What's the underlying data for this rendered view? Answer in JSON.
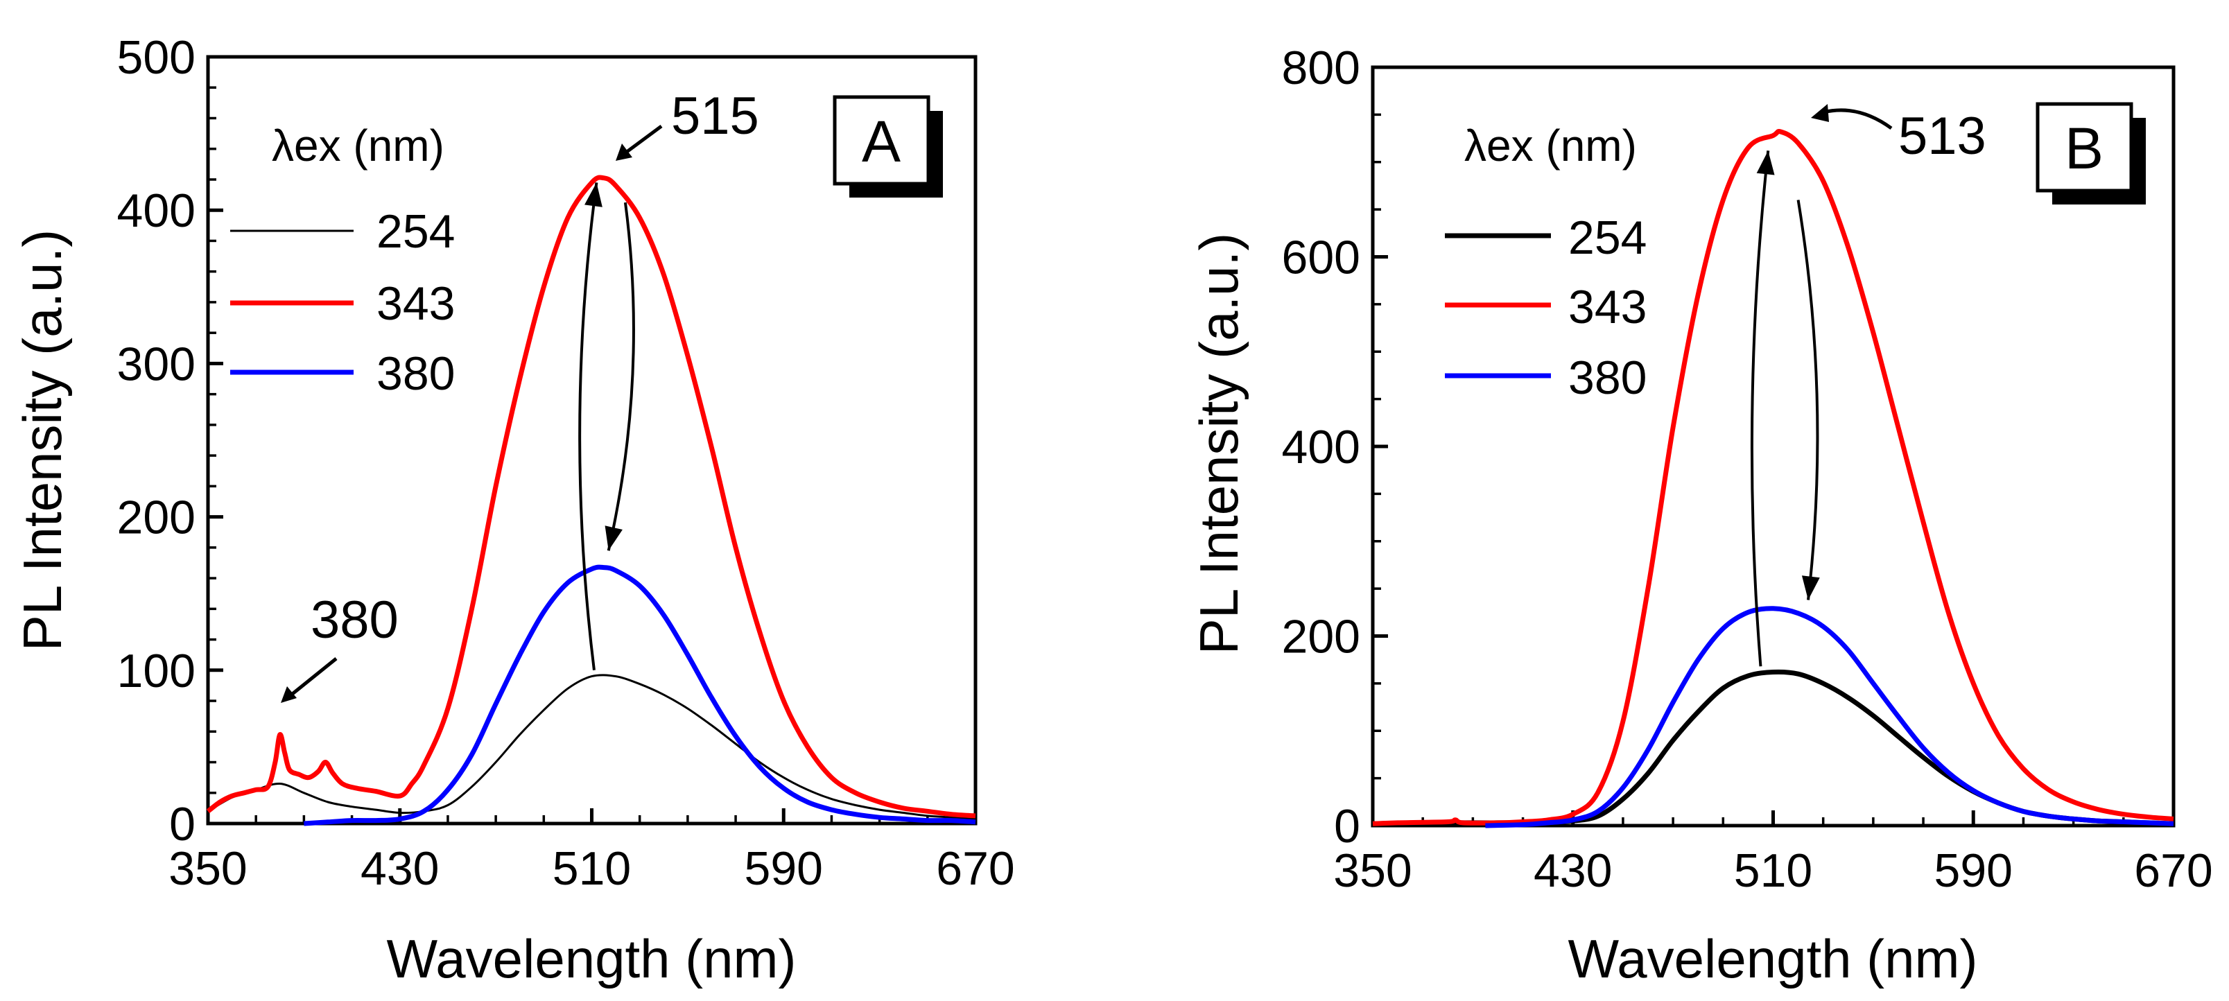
{
  "chart_data": [
    {
      "panel": "A",
      "type": "line",
      "xlabel": "Wavelength (nm)",
      "ylabel": "PL Intensity (a.u.)",
      "xlim": [
        350,
        670
      ],
      "ylim": [
        0,
        500
      ],
      "xticks": [
        "350",
        "430",
        "510",
        "590",
        "670"
      ],
      "yticks": [
        "0",
        "100",
        "200",
        "300",
        "400",
        "500"
      ],
      "legend_title": "λex (nm)",
      "legend_placement": "top-left",
      "series": [
        {
          "name": "254",
          "color": "#000000",
          "thin": true,
          "points": [
            [
              350,
              8
            ],
            [
              360,
              17
            ],
            [
              370,
              22
            ],
            [
              380,
              26
            ],
            [
              390,
              20
            ],
            [
              400,
              14
            ],
            [
              410,
              11
            ],
            [
              420,
              9
            ],
            [
              430,
              7
            ],
            [
              440,
              8
            ],
            [
              450,
              12
            ],
            [
              460,
              24
            ],
            [
              470,
              40
            ],
            [
              480,
              58
            ],
            [
              490,
              74
            ],
            [
              500,
              88
            ],
            [
              510,
              96
            ],
            [
              520,
              96
            ],
            [
              530,
              91
            ],
            [
              540,
              84
            ],
            [
              550,
              75
            ],
            [
              560,
              64
            ],
            [
              570,
              52
            ],
            [
              580,
              40
            ],
            [
              590,
              30
            ],
            [
              600,
              22
            ],
            [
              610,
              16
            ],
            [
              620,
              12
            ],
            [
              630,
              9
            ],
            [
              640,
              7
            ],
            [
              650,
              5
            ],
            [
              660,
              4
            ],
            [
              670,
              3
            ]
          ]
        },
        {
          "name": "343",
          "color": "#ff0000",
          "thin": false,
          "points": [
            [
              350,
              8
            ],
            [
              355,
              14
            ],
            [
              360,
              18
            ],
            [
              365,
              20
            ],
            [
              370,
              22
            ],
            [
              375,
              24
            ],
            [
              378,
              40
            ],
            [
              380,
              58
            ],
            [
              382,
              46
            ],
            [
              384,
              35
            ],
            [
              388,
              32
            ],
            [
              392,
              30
            ],
            [
              396,
              34
            ],
            [
              399,
              40
            ],
            [
              402,
              33
            ],
            [
              406,
              26
            ],
            [
              412,
              23
            ],
            [
              420,
              21
            ],
            [
              430,
              18
            ],
            [
              435,
              26
            ],
            [
              440,
              38
            ],
            [
              450,
              75
            ],
            [
              460,
              140
            ],
            [
              470,
              220
            ],
            [
              480,
              290
            ],
            [
              490,
              350
            ],
            [
              500,
              395
            ],
            [
              510,
              418
            ],
            [
              515,
              421
            ],
            [
              520,
              416
            ],
            [
              530,
              395
            ],
            [
              540,
              358
            ],
            [
              550,
              305
            ],
            [
              560,
              245
            ],
            [
              570,
              180
            ],
            [
              580,
              125
            ],
            [
              590,
              80
            ],
            [
              600,
              50
            ],
            [
              610,
              30
            ],
            [
              620,
              20
            ],
            [
              630,
              14
            ],
            [
              640,
              10
            ],
            [
              650,
              8
            ],
            [
              660,
              6
            ],
            [
              670,
              5
            ]
          ]
        },
        {
          "name": "380",
          "color": "#0000ff",
          "thin": false,
          "points": [
            [
              390,
              0
            ],
            [
              400,
              1
            ],
            [
              410,
              2
            ],
            [
              420,
              2
            ],
            [
              430,
              3
            ],
            [
              440,
              8
            ],
            [
              450,
              22
            ],
            [
              460,
              45
            ],
            [
              470,
              78
            ],
            [
              480,
              110
            ],
            [
              490,
              138
            ],
            [
              500,
              157
            ],
            [
              510,
              166
            ],
            [
              515,
              167
            ],
            [
              520,
              165
            ],
            [
              530,
              155
            ],
            [
              540,
              136
            ],
            [
              550,
              110
            ],
            [
              560,
              82
            ],
            [
              570,
              57
            ],
            [
              580,
              37
            ],
            [
              590,
              23
            ],
            [
              600,
              14
            ],
            [
              610,
              9
            ],
            [
              620,
              6
            ],
            [
              630,
              4
            ],
            [
              640,
              3
            ],
            [
              650,
              2
            ],
            [
              660,
              2
            ],
            [
              670,
              1
            ]
          ]
        }
      ],
      "annotations": [
        {
          "text": "515",
          "kind": "peak",
          "at": [
            515,
            421
          ]
        },
        {
          "text": "380",
          "kind": "peak",
          "at": [
            380,
            58
          ]
        }
      ],
      "curved_arrows": [
        {
          "from": [
            511,
            100
          ],
          "to": [
            512,
            418
          ],
          "bend": -45
        },
        {
          "from": [
            524,
            405
          ],
          "to": [
            517,
            178
          ],
          "bend": 45
        }
      ]
    },
    {
      "panel": "B",
      "type": "line",
      "xlabel": "Wavelength (nm)",
      "ylabel": "PL Intensity (a.u.)",
      "xlim": [
        350,
        670
      ],
      "ylim": [
        0,
        800
      ],
      "xticks": [
        "350",
        "430",
        "510",
        "590",
        "670"
      ],
      "yticks": [
        "0",
        "200",
        "400",
        "600",
        "800"
      ],
      "legend_title": "λex (nm)",
      "legend_placement": "top-left",
      "series": [
        {
          "name": "254",
          "color": "#000000",
          "thin": false,
          "points": [
            [
              350,
              2
            ],
            [
              370,
              3
            ],
            [
              390,
              3
            ],
            [
              410,
              3
            ],
            [
              420,
              4
            ],
            [
              430,
              5
            ],
            [
              440,
              10
            ],
            [
              450,
              28
            ],
            [
              460,
              55
            ],
            [
              470,
              90
            ],
            [
              480,
              120
            ],
            [
              490,
              145
            ],
            [
              500,
              158
            ],
            [
              510,
              162
            ],
            [
              520,
              160
            ],
            [
              530,
              150
            ],
            [
              540,
              135
            ],
            [
              550,
              116
            ],
            [
              560,
              94
            ],
            [
              570,
              72
            ],
            [
              580,
              52
            ],
            [
              590,
              36
            ],
            [
              600,
              24
            ],
            [
              610,
              15
            ],
            [
              620,
              10
            ],
            [
              630,
              7
            ],
            [
              640,
              5
            ],
            [
              650,
              4
            ],
            [
              660,
              3
            ],
            [
              670,
              2
            ]
          ]
        },
        {
          "name": "343",
          "color": "#ff0000",
          "thin": false,
          "points": [
            [
              350,
              2
            ],
            [
              360,
              3
            ],
            [
              380,
              4
            ],
            [
              383,
              6
            ],
            [
              386,
              3
            ],
            [
              400,
              3
            ],
            [
              410,
              4
            ],
            [
              420,
              6
            ],
            [
              430,
              12
            ],
            [
              440,
              35
            ],
            [
              450,
              110
            ],
            [
              460,
              250
            ],
            [
              470,
              420
            ],
            [
              480,
              560
            ],
            [
              490,
              660
            ],
            [
              500,
              715
            ],
            [
              510,
              728
            ],
            [
              513,
              732
            ],
            [
              520,
              720
            ],
            [
              530,
              680
            ],
            [
              540,
              610
            ],
            [
              550,
              520
            ],
            [
              560,
              420
            ],
            [
              570,
              320
            ],
            [
              580,
              225
            ],
            [
              590,
              150
            ],
            [
              600,
              95
            ],
            [
              610,
              60
            ],
            [
              620,
              38
            ],
            [
              630,
              25
            ],
            [
              640,
              17
            ],
            [
              650,
              12
            ],
            [
              660,
              9
            ],
            [
              670,
              7
            ]
          ]
        },
        {
          "name": "380",
          "color": "#0000ff",
          "thin": false,
          "points": [
            [
              395,
              0
            ],
            [
              410,
              1
            ],
            [
              420,
              3
            ],
            [
              430,
              6
            ],
            [
              440,
              15
            ],
            [
              450,
              40
            ],
            [
              460,
              80
            ],
            [
              470,
              130
            ],
            [
              480,
              175
            ],
            [
              490,
              208
            ],
            [
              500,
              225
            ],
            [
              510,
              229
            ],
            [
              520,
              224
            ],
            [
              530,
              210
            ],
            [
              540,
              185
            ],
            [
              550,
              150
            ],
            [
              560,
              115
            ],
            [
              570,
              82
            ],
            [
              580,
              56
            ],
            [
              590,
              37
            ],
            [
              600,
              24
            ],
            [
              610,
              15
            ],
            [
              620,
              10
            ],
            [
              630,
              7
            ],
            [
              640,
              5
            ],
            [
              650,
              4
            ],
            [
              660,
              3
            ],
            [
              670,
              2
            ]
          ]
        }
      ],
      "annotations": [
        {
          "text": "513",
          "kind": "peak",
          "at": [
            513,
            732
          ]
        }
      ],
      "curved_arrows": [
        {
          "from": [
            505,
            168
          ],
          "to": [
            508,
            712
          ],
          "bend": -35
        },
        {
          "from": [
            520,
            660
          ],
          "to": [
            524,
            238
          ],
          "bend": 40
        }
      ]
    }
  ],
  "panel_labels": [
    "A",
    "B"
  ]
}
